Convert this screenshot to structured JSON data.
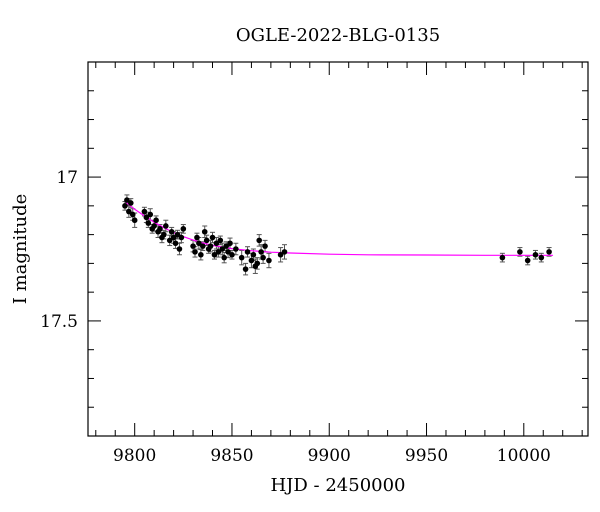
{
  "chart_data": {
    "type": "scatter",
    "title": "OGLE-2022-BLG-0135",
    "xlabel": "HJD - 2450000",
    "ylabel": "I magnitude",
    "xlim": [
      9776,
      10033
    ],
    "ylim": [
      17.9,
      16.6
    ],
    "y_inverted": true,
    "grid": false,
    "x_major_ticks": [
      9800,
      9850,
      9900,
      9950,
      10000
    ],
    "x_tick_labels": [
      "9800",
      "9850",
      "9900",
      "9950",
      "10000"
    ],
    "y_major_ticks": [
      17.0,
      17.5
    ],
    "y_tick_labels": [
      "17",
      "17.5"
    ],
    "colors": {
      "points": "#000000",
      "errorbars": "#555555",
      "model": "#ff00ff",
      "axes": "#000000"
    },
    "series": [
      {
        "kind": "observations",
        "x": [
          9795,
          9796,
          9797,
          9798,
          9799,
          9800,
          9805,
          9806,
          9807,
          9808,
          9809,
          9810,
          9811,
          9812,
          9813,
          9814,
          9815,
          9816,
          9818,
          9819,
          9820,
          9821,
          9822,
          9823,
          9824,
          9825,
          9830,
          9831,
          9832,
          9833,
          9834,
          9835,
          9836,
          9837,
          9838,
          9839,
          9840,
          9841,
          9842,
          9843,
          9844,
          9845,
          9846,
          9847,
          9848,
          9849,
          9850,
          9852,
          9855,
          9857,
          9858,
          9860,
          9861,
          9862,
          9863,
          9864,
          9865,
          9866,
          9867,
          9869,
          9875,
          9877,
          9989,
          9998,
          10002,
          10006,
          10009,
          10013
        ],
        "y": [
          17.1,
          17.08,
          17.12,
          17.09,
          17.13,
          17.15,
          17.12,
          17.14,
          17.16,
          17.13,
          17.18,
          17.17,
          17.15,
          17.19,
          17.18,
          17.21,
          17.2,
          17.17,
          17.22,
          17.19,
          17.21,
          17.23,
          17.2,
          17.25,
          17.21,
          17.18,
          17.24,
          17.26,
          17.21,
          17.23,
          17.27,
          17.24,
          17.19,
          17.22,
          17.25,
          17.24,
          17.21,
          17.27,
          17.23,
          17.26,
          17.22,
          17.25,
          17.28,
          17.24,
          17.26,
          17.23,
          17.27,
          17.25,
          17.28,
          17.32,
          17.26,
          17.29,
          17.27,
          17.31,
          17.3,
          17.22,
          17.26,
          17.28,
          17.24,
          17.29,
          17.27,
          17.26,
          17.28,
          17.26,
          17.29,
          17.27,
          17.28,
          17.26
        ],
        "yerr": [
          0.015,
          0.018,
          0.02,
          0.015,
          0.02,
          0.025,
          0.015,
          0.018,
          0.015,
          0.02,
          0.015,
          0.018,
          0.015,
          0.02,
          0.015,
          0.018,
          0.015,
          0.02,
          0.018,
          0.015,
          0.02,
          0.018,
          0.015,
          0.02,
          0.018,
          0.015,
          0.02,
          0.018,
          0.015,
          0.02,
          0.018,
          0.015,
          0.02,
          0.018,
          0.015,
          0.02,
          0.018,
          0.015,
          0.02,
          0.018,
          0.015,
          0.02,
          0.018,
          0.015,
          0.02,
          0.018,
          0.015,
          0.02,
          0.025,
          0.02,
          0.018,
          0.025,
          0.02,
          0.025,
          0.02,
          0.02,
          0.025,
          0.02,
          0.02,
          0.025,
          0.025,
          0.025,
          0.015,
          0.015,
          0.015,
          0.015,
          0.015,
          0.015
        ]
      },
      {
        "kind": "model",
        "x": [
          9795,
          9800,
          9805,
          9810,
          9815,
          9820,
          9825,
          9830,
          9835,
          9840,
          9845,
          9850,
          9860,
          9870,
          9880,
          9900,
          9920,
          9950,
          9980,
          10000,
          10015
        ],
        "y": [
          17.085,
          17.112,
          17.135,
          17.157,
          17.176,
          17.193,
          17.207,
          17.219,
          17.229,
          17.237,
          17.243,
          17.249,
          17.256,
          17.261,
          17.264,
          17.268,
          17.27,
          17.271,
          17.272,
          17.272,
          17.272
        ]
      }
    ]
  }
}
